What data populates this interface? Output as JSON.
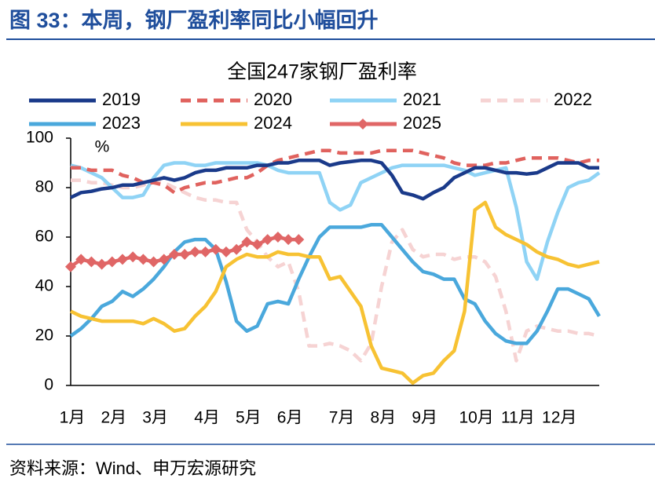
{
  "header": {
    "title": "图 33：本周，钢厂盈利率同比小幅回升"
  },
  "chart_data": {
    "type": "line",
    "title": "全国247家钢厂盈利率",
    "y_label": "%",
    "categories": [
      "1月",
      null,
      null,
      null,
      "2月",
      null,
      null,
      null,
      "3月",
      null,
      null,
      null,
      null,
      "4月",
      null,
      null,
      null,
      "5月",
      null,
      null,
      null,
      "6月",
      null,
      null,
      null,
      null,
      "7月",
      null,
      null,
      null,
      "8月",
      null,
      null,
      null,
      "9月",
      null,
      null,
      null,
      null,
      "10月",
      null,
      null,
      null,
      "11月",
      null,
      null,
      null,
      "12月",
      null,
      null,
      null,
      null
    ],
    "ylim": [
      0,
      100
    ],
    "yticks": [
      0,
      20,
      40,
      60,
      80,
      100
    ],
    "series": [
      {
        "name": "2019",
        "color": "#1a3a8a",
        "values": [
          76,
          78,
          78.5,
          79.5,
          80,
          81,
          81,
          82,
          83,
          84,
          83,
          84,
          86,
          87,
          87,
          88,
          88,
          88,
          89,
          89,
          90,
          90,
          91,
          91,
          91,
          89,
          90,
          90.5,
          91,
          91,
          90,
          85,
          78,
          77,
          75.5,
          78,
          80,
          84,
          86,
          88,
          88,
          87,
          86,
          86,
          85.5,
          86,
          88,
          90,
          90,
          90,
          88,
          88
        ]
      },
      {
        "name": "2020",
        "color": "#e0625e",
        "dashed": true,
        "values": [
          88,
          88,
          87,
          87,
          87,
          85,
          84,
          82,
          82,
          81,
          78,
          80,
          81,
          82,
          82,
          83,
          84,
          84,
          86,
          89,
          91,
          92,
          93,
          94,
          95,
          95,
          94,
          94,
          94,
          94,
          95,
          95,
          95,
          95,
          94,
          93,
          92,
          90,
          89,
          89,
          89,
          90,
          90,
          91,
          92,
          92,
          92,
          92,
          91,
          90,
          91,
          91
        ]
      },
      {
        "name": "2021",
        "color": "#8fd3f5",
        "values": [
          89,
          88,
          86,
          84,
          80,
          76,
          76,
          77,
          84,
          89,
          90,
          90,
          89,
          89,
          90,
          90,
          90,
          90,
          90,
          89,
          87,
          86,
          86,
          86,
          86,
          74,
          71,
          73,
          82,
          84,
          86,
          88,
          89,
          89,
          89,
          89,
          89,
          88,
          87,
          85,
          86,
          87,
          88,
          72,
          50,
          43,
          58,
          70,
          80,
          82,
          83,
          86
        ]
      },
      {
        "name": "2022",
        "color": "#f6d3d3",
        "dashed": true,
        "values": [
          83,
          83,
          82,
          82,
          81,
          80,
          80,
          81,
          83,
          82,
          80,
          78,
          76,
          75,
          75,
          74,
          74,
          63,
          58,
          52,
          48,
          50,
          38,
          16,
          16,
          17,
          16,
          14,
          10,
          17,
          40,
          58,
          63,
          55,
          52,
          53,
          53,
          51,
          52,
          52,
          50,
          44,
          30,
          10,
          22,
          24,
          23,
          22,
          22,
          21,
          21,
          20
        ]
      },
      {
        "name": "2023",
        "color": "#4aa8dc",
        "values": [
          20,
          23,
          27,
          32,
          34,
          38,
          36,
          39,
          43,
          48,
          54,
          58,
          59,
          59,
          55,
          42,
          26,
          22,
          24,
          33,
          34,
          33,
          43,
          52,
          60,
          64,
          64,
          64,
          64,
          65,
          65,
          60,
          55,
          50,
          46,
          45,
          43,
          43,
          35,
          33,
          26,
          21,
          18,
          17,
          17,
          22,
          30,
          39,
          39,
          37,
          35,
          28
        ]
      },
      {
        "name": "2024",
        "color": "#f7c233",
        "values": [
          30,
          28,
          27,
          26,
          26,
          26,
          26,
          25,
          27,
          25,
          22,
          23,
          28,
          32,
          38,
          48,
          51,
          53,
          52,
          52,
          54,
          53,
          53,
          52,
          52,
          43,
          44,
          38,
          32,
          16,
          7,
          6,
          5,
          1,
          4,
          5,
          10,
          14,
          30,
          71,
          74,
          64,
          61,
          59,
          57,
          54,
          52,
          51,
          49,
          48,
          49,
          50
        ]
      },
      {
        "name": "2025",
        "color": "#e06666",
        "marker": "diamond",
        "values": [
          48,
          51,
          50,
          49,
          50,
          51,
          52,
          51,
          50,
          51,
          53,
          53,
          54,
          54,
          55,
          54,
          55,
          58,
          57,
          59,
          60,
          59,
          59,
          null,
          null,
          null,
          null,
          null,
          null,
          null,
          null,
          null,
          null,
          null,
          null,
          null,
          null,
          null,
          null,
          null,
          null,
          null,
          null,
          null,
          null,
          null,
          null,
          null,
          null,
          null,
          null,
          null
        ]
      }
    ]
  },
  "footer": {
    "source": "资料来源：Wind、申万宏源研究"
  }
}
